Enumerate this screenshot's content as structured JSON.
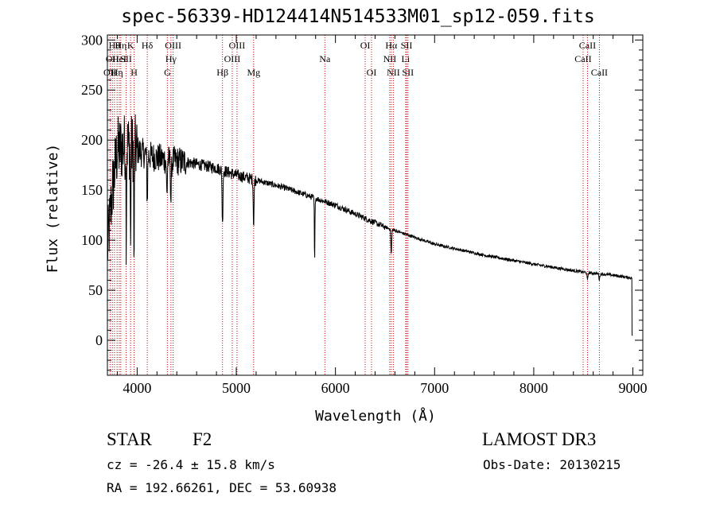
{
  "title": "spec-56339-HD124414N514533M01_sp12-059.fits",
  "info": {
    "class_label": "STAR",
    "subclass": "F2",
    "survey": "LAMOST DR3",
    "redshift": "cz = -26.4 ± 15.8 km/s",
    "obs_date": "Obs-Date: 20130215",
    "coords": "RA = 192.66261, DEC =  53.60938"
  },
  "chart_data": {
    "type": "line",
    "title": "spec-56339-HD124414N514533M01_sp12-059.fits",
    "xlabel": "Wavelength (Å)",
    "ylabel": "Flux (relative)",
    "xlim": [
      3700,
      9100
    ],
    "ylim": [
      -35,
      305
    ],
    "xticks": [
      4000,
      5000,
      6000,
      7000,
      8000,
      9000
    ],
    "yticks": [
      0,
      50,
      100,
      150,
      200,
      250,
      300
    ],
    "grid": false,
    "continuum": {
      "x": [
        3700,
        3750,
        3800,
        3900,
        4000,
        4100,
        4300,
        4500,
        4800,
        5000,
        5200,
        5500,
        6000,
        6500,
        7000,
        7500,
        8000,
        8500,
        8800,
        9000
      ],
      "y": [
        90,
        150,
        190,
        195,
        190,
        185,
        180,
        178,
        172,
        165,
        160,
        152,
        135,
        113,
        96,
        85,
        76,
        68,
        65,
        62
      ]
    },
    "absorption_features": [
      {
        "wavelength": 3890,
        "depth": 90
      },
      {
        "wavelength": 3934,
        "depth": 110
      },
      {
        "wavelength": 3969,
        "depth": 130
      },
      {
        "wavelength": 4102,
        "depth": 45
      },
      {
        "wavelength": 4300,
        "depth": 35
      },
      {
        "wavelength": 4341,
        "depth": 40
      },
      {
        "wavelength": 4861,
        "depth": 55
      },
      {
        "wavelength": 5175,
        "depth": 45
      },
      {
        "wavelength": 5790,
        "depth": 65
      },
      {
        "wavelength": 6563,
        "depth": 25
      },
      {
        "wavelength": 8542,
        "depth": 8
      },
      {
        "wavelength": 8662,
        "depth": 6
      }
    ],
    "line_markers": [
      {
        "wavelength": 3727,
        "label": "OII",
        "row": 3
      },
      {
        "wavelength": 3750,
        "label": "OII",
        "row": 2
      },
      {
        "wavelength": 3771,
        "label": "Hθ",
        "row": 1
      },
      {
        "wavelength": 3798,
        "label": "Hη",
        "row": 3
      },
      {
        "wavelength": 3820,
        "label": "HeI",
        "row": 2
      },
      {
        "wavelength": 3835,
        "label": "Hη",
        "row": 1
      },
      {
        "wavelength": 3889,
        "label": "SII",
        "row": 2
      },
      {
        "wavelength": 3934,
        "label": "K",
        "row": 1
      },
      {
        "wavelength": 3969,
        "label": "H",
        "row": 3
      },
      {
        "wavelength": 4102,
        "label": "Hδ",
        "row": 1
      },
      {
        "wavelength": 4305,
        "label": "G",
        "row": 3
      },
      {
        "wavelength": 4341,
        "label": "Hγ",
        "row": 2
      },
      {
        "wavelength": 4363,
        "label": "OIII",
        "row": 1
      },
      {
        "wavelength": 4861,
        "label": "Hβ",
        "row": 3
      },
      {
        "wavelength": 4959,
        "label": "OIII",
        "row": 2
      },
      {
        "wavelength": 5007,
        "label": "OIII",
        "row": 1
      },
      {
        "wavelength": 5175,
        "label": "Mg",
        "row": 3
      },
      {
        "wavelength": 5893,
        "label": "Na",
        "row": 2
      },
      {
        "wavelength": 6300,
        "label": "OI",
        "row": 1
      },
      {
        "wavelength": 6364,
        "label": "OI",
        "row": 3
      },
      {
        "wavelength": 6548,
        "label": "NII",
        "row": 2
      },
      {
        "wavelength": 6563,
        "label": "Hα",
        "row": 1
      },
      {
        "wavelength": 6584,
        "label": "NII",
        "row": 3
      },
      {
        "wavelength": 6717,
        "label": "SII",
        "row": 1
      },
      {
        "wavelength": 6708,
        "label": "Li",
        "row": 2
      },
      {
        "wavelength": 6731,
        "label": "SII",
        "row": 3
      },
      {
        "wavelength": 8498,
        "label": "CaII",
        "row": 2
      },
      {
        "wavelength": 8542,
        "label": "CaII",
        "row": 1
      },
      {
        "wavelength": 8662,
        "label": "CaII",
        "row": 3
      }
    ],
    "colors": {
      "spectrum": "#000000",
      "markers": "#cc0000",
      "axes": "#000000"
    }
  }
}
